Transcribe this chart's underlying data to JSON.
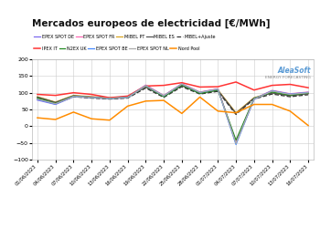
{
  "title": "Mercados europeos de electricidad [€/MWh]",
  "ylim": [
    -100,
    200
  ],
  "yticks": [
    -100,
    -50,
    0,
    50,
    100,
    150,
    200
  ],
  "dates": [
    "01/06/2023",
    "04/06/2023",
    "07/06/2023",
    "10/06/2023",
    "13/06/2023",
    "16/06/2023",
    "19/06/2023",
    "22/06/2023",
    "25/06/2023",
    "28/06/2023",
    "01/07/2023",
    "04/07/2023",
    "07/07/2023",
    "10/07/2023",
    "13/07/2023",
    "16/07/2023"
  ],
  "series": {
    "EPEX SPOT DE": {
      "color": "#7B68EE",
      "style": "-",
      "lw": 0.9,
      "values": [
        78,
        65,
        88,
        85,
        82,
        85,
        122,
        90,
        125,
        100,
        110,
        -50,
        80,
        105,
        95,
        100
      ]
    },
    "EPEX SPOT FR": {
      "color": "#FF69B4",
      "style": "-",
      "lw": 0.9,
      "values": [
        82,
        68,
        90,
        88,
        84,
        88,
        123,
        92,
        127,
        102,
        112,
        -48,
        82,
        107,
        97,
        102
      ]
    },
    "MIBEL PT": {
      "color": "#DAA520",
      "style": "-",
      "lw": 0.9,
      "values": [
        88,
        72,
        92,
        88,
        85,
        88,
        118,
        90,
        122,
        100,
        108,
        40,
        85,
        100,
        92,
        98
      ]
    },
    "MIBEL ES": {
      "color": "#555555",
      "style": "-",
      "lw": 0.9,
      "values": [
        87,
        71,
        91,
        87,
        84,
        87,
        117,
        89,
        121,
        99,
        107,
        38,
        84,
        99,
        91,
        97
      ]
    },
    "MIBEL+Ajuste": {
      "color": "#333333",
      "style": "--",
      "lw": 0.9,
      "values": [
        84,
        68,
        88,
        84,
        81,
        84,
        114,
        86,
        118,
        96,
        104,
        35,
        81,
        96,
        88,
        94
      ]
    },
    "IPEX IT": {
      "color": "#FF3333",
      "style": "-",
      "lw": 1.1,
      "values": [
        95,
        92,
        100,
        95,
        85,
        90,
        120,
        122,
        130,
        117,
        118,
        132,
        108,
        122,
        125,
        115
      ]
    },
    "N2EX UK": {
      "color": "#228B22",
      "style": "-",
      "lw": 0.9,
      "values": [
        84,
        68,
        90,
        86,
        83,
        86,
        120,
        88,
        123,
        98,
        108,
        -42,
        83,
        102,
        93,
        99
      ]
    },
    "EPEX SPOT BE": {
      "color": "#4488FF",
      "style": "-",
      "lw": 0.9,
      "values": [
        80,
        66,
        89,
        86,
        83,
        86,
        121,
        91,
        126,
        101,
        111,
        -55,
        81,
        106,
        96,
        101
      ]
    },
    "EPEX SPOT NL": {
      "color": "#AAAAAA",
      "style": "-",
      "lw": 0.9,
      "values": [
        81,
        67,
        89,
        86,
        83,
        86,
        121,
        91,
        126,
        101,
        111,
        -52,
        81,
        105,
        95,
        100
      ]
    },
    "Nord Pool": {
      "color": "#FF8C00",
      "style": "-",
      "lw": 1.1,
      "values": [
        25,
        20,
        42,
        22,
        18,
        60,
        75,
        77,
        38,
        87,
        45,
        40,
        65,
        65,
        45,
        2
      ]
    }
  },
  "logo_text1": "AleaSoft",
  "logo_text2": "ENERGY FORECASTING",
  "bg_color": "#ffffff",
  "grid_color": "#cccccc",
  "legend_order": [
    "EPEX SPOT DE",
    "EPEX SPOT FR",
    "MIBEL PT",
    "MIBEL ES",
    "MIBEL+Ajuste",
    "IPEX IT",
    "N2EX UK",
    "EPEX SPOT BE",
    "EPEX SPOT NL",
    "Nord Pool"
  ]
}
